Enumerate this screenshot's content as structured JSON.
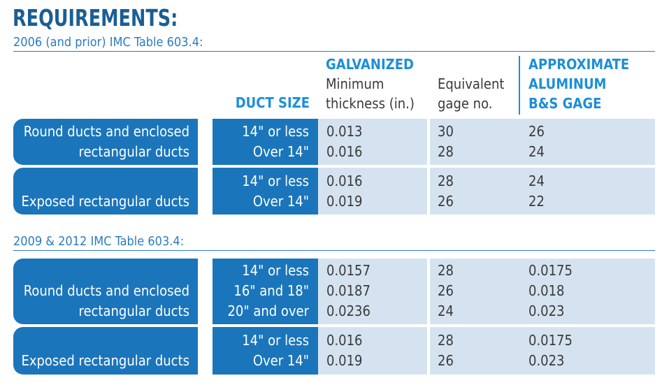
{
  "title": "REQUIREMENTS:",
  "table1": {
    "caption": "2006 (and prior) IMC Table 603.4:",
    "headers": {
      "duct_size": "DUCT SIZE",
      "galvanized": "GALVANIZED",
      "min_thickness_1": "Minimum",
      "min_thickness_2": "thickness (in.)",
      "equiv_1": "Equivalent",
      "equiv_2": "gage no.",
      "alum_1": "APPROXIMATE",
      "alum_2": "ALUMINUM",
      "alum_3": "B&S GAGE"
    },
    "groups": [
      {
        "label_lines": [
          "Round ducts and enclosed",
          "rectangular ducts"
        ],
        "rows": [
          {
            "size": "14\" or less",
            "thickness": "0.013",
            "gage": "30",
            "aluminum": "26"
          },
          {
            "size": "Over 14\"",
            "thickness": "0.016",
            "gage": "28",
            "aluminum": "24"
          }
        ]
      },
      {
        "label_lines": [
          "Exposed rectangular ducts"
        ],
        "rows": [
          {
            "size": "14\" or less",
            "thickness": "0.016",
            "gage": "28",
            "aluminum": "24"
          },
          {
            "size": "Over 14\"",
            "thickness": "0.019",
            "gage": "26",
            "aluminum": "22"
          }
        ]
      }
    ]
  },
  "table2": {
    "caption": "2009 & 2012 IMC Table 603.4:",
    "groups": [
      {
        "label_lines": [
          "Round ducts and enclosed",
          "rectangular ducts"
        ],
        "rows": [
          {
            "size": "14\" or less",
            "thickness": "0.0157",
            "gage": "28",
            "aluminum": "0.0175"
          },
          {
            "size": "16\" and 18\"",
            "thickness": "0.0187",
            "gage": "26",
            "aluminum": "0.018"
          },
          {
            "size": "20\" and over",
            "thickness": "0.0236",
            "gage": "24",
            "aluminum": "0.023"
          }
        ]
      },
      {
        "label_lines": [
          "Exposed rectangular ducts"
        ],
        "rows": [
          {
            "size": "14\" or less",
            "thickness": "0.016",
            "gage": "28",
            "aluminum": "0.0175"
          },
          {
            "size": "Over 14\"",
            "thickness": "0.019",
            "gage": "26",
            "aluminum": "0.023"
          }
        ]
      }
    ]
  }
}
